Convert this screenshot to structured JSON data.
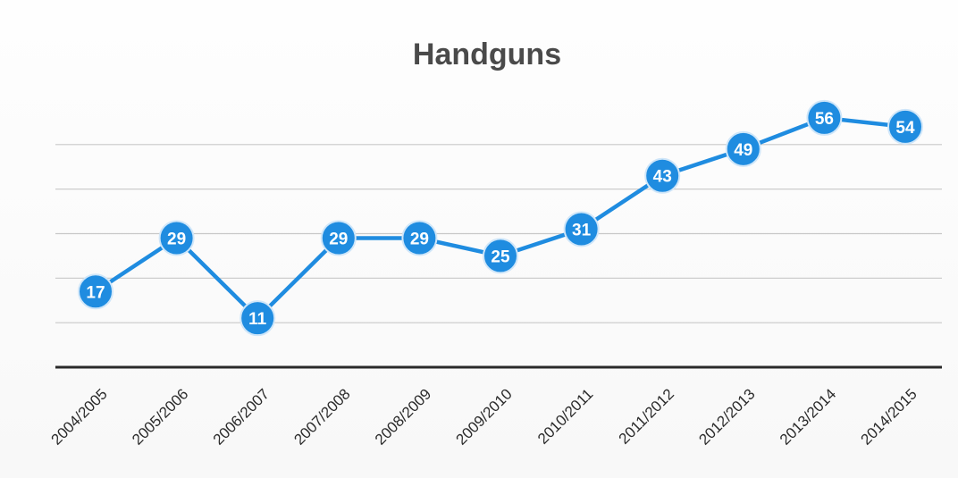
{
  "chart_data": {
    "type": "line",
    "title": "Handguns",
    "xlabel": "",
    "ylabel": "",
    "categories": [
      "2004/2005",
      "2005/2006",
      "2006/2007",
      "2007/2008",
      "2008/2009",
      "2009/2010",
      "2010/2011",
      "2011/2012",
      "2012/2013",
      "2013/2014",
      "2014/2015"
    ],
    "series": [
      {
        "values": [
          17,
          29,
          11,
          29,
          29,
          25,
          31,
          43,
          49,
          56,
          54
        ]
      }
    ],
    "ylim": [
      0,
      60
    ],
    "y_gridlines": [
      10,
      20,
      30,
      40,
      50
    ],
    "grid": true,
    "legend": "none",
    "data_labels": true,
    "colors": {
      "series": "#1f8ce0",
      "marker": "#1f8ce0",
      "marker_outline": "#cfe6f9",
      "gridline": "#c8c8c8",
      "baseline": "#2a2a2a",
      "label_text": "#ffffff"
    }
  }
}
